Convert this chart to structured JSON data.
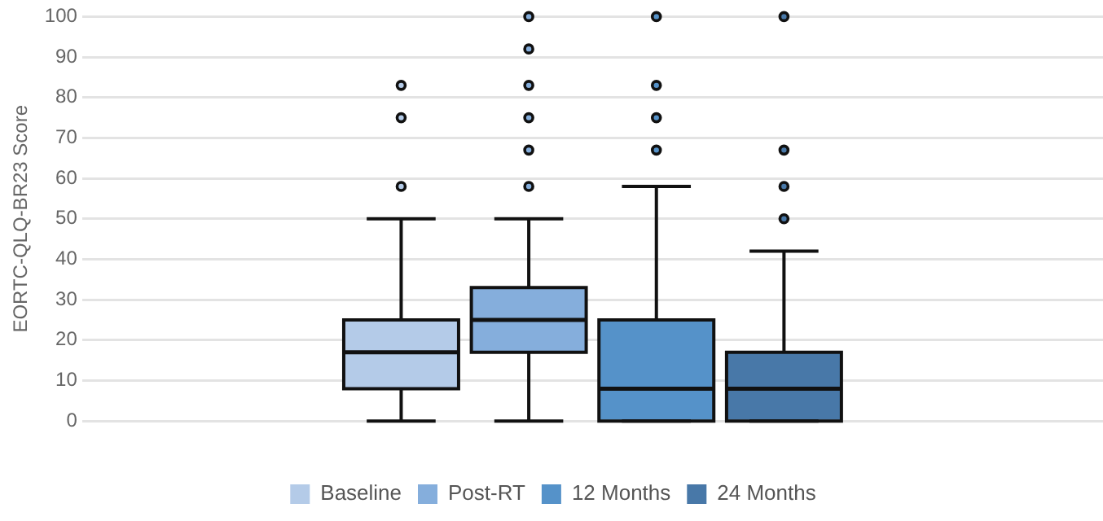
{
  "chart_data": {
    "type": "box",
    "ylabel": "EORTC-QLQ-BR23 Score",
    "categories": [
      null
    ],
    "series": [
      {
        "name": "Baseline",
        "color": "#b4cbe8",
        "boxes": [
          {
            "low": 0,
            "q1": 8,
            "median": 17,
            "q3": 25,
            "high": 50,
            "outliers": [
              58,
              75,
              83
            ]
          }
        ]
      },
      {
        "name": "Post-RT",
        "color": "#85aedc",
        "boxes": [
          {
            "low": 0,
            "q1": 17,
            "median": 25,
            "q3": 33,
            "high": 50,
            "outliers": [
              58,
              67,
              75,
              83,
              92,
              100
            ]
          }
        ]
      },
      {
        "name": "12 Months",
        "color": "#5592c9",
        "boxes": [
          {
            "low": 0,
            "q1": 0,
            "median": 8,
            "q3": 25,
            "high": 58,
            "outliers": [
              67,
              75,
              83,
              100
            ]
          }
        ]
      },
      {
        "name": "24 Months",
        "color": "#4878a8",
        "boxes": [
          {
            "low": 0,
            "q1": 0,
            "median": 8,
            "q3": 17,
            "high": 42,
            "outliers": [
              50,
              58,
              67,
              100
            ]
          }
        ]
      }
    ],
    "ylim": [
      0,
      100
    ],
    "yticks": [
      0,
      10,
      20,
      30,
      40,
      50,
      60,
      70,
      80,
      90,
      100
    ],
    "grid": "y",
    "legend": "bottom"
  }
}
